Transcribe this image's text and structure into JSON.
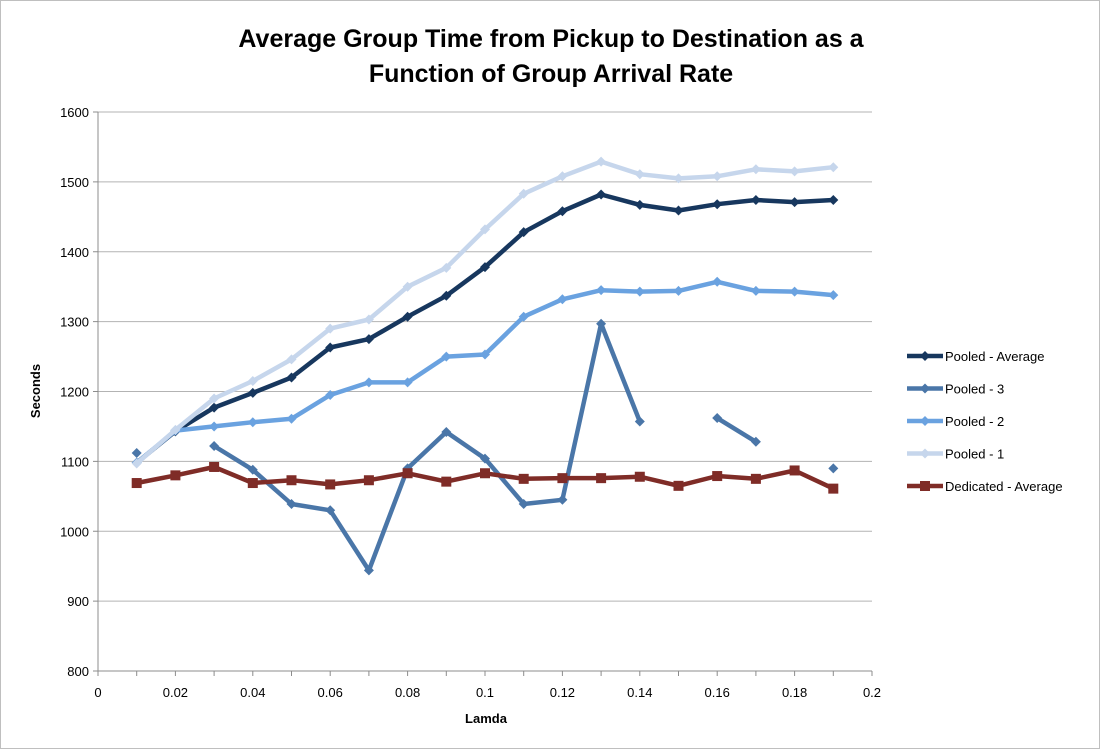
{
  "chart_data": {
    "type": "line",
    "title_lines": [
      "Average Group Time from Pickup to Destination as a",
      "Function of Group Arrival Rate"
    ],
    "xlabel": "Lamda",
    "ylabel": "Seconds",
    "xlim": [
      0,
      0.2
    ],
    "ylim": [
      800,
      1600
    ],
    "x_ticks": [
      "0",
      "0.02",
      "0.04",
      "0.06",
      "0.08",
      "0.1",
      "0.12",
      "0.14",
      "0.16",
      "0.18",
      "0.2"
    ],
    "y_ticks": [
      "800",
      "900",
      "1000",
      "1100",
      "1200",
      "1300",
      "1400",
      "1500",
      "1600"
    ],
    "grid": "horizontal",
    "legend_position": "right",
    "x": [
      0.01,
      0.02,
      0.03,
      0.04,
      0.05,
      0.06,
      0.07,
      0.08,
      0.09,
      0.1,
      0.11,
      0.12,
      0.13,
      0.14,
      0.15,
      0.16,
      0.17,
      0.18,
      0.19
    ],
    "series": [
      {
        "name": "Pooled - Average",
        "color": "#17375e",
        "marker": "diamond",
        "values": [
          1098,
          1143,
          1177,
          1198,
          1220,
          1263,
          1275,
          1307,
          1337,
          1378,
          1428,
          1458,
          1482,
          1467,
          1459,
          1468,
          1474,
          1471,
          1474
        ]
      },
      {
        "name": "Pooled - 3",
        "color": "#4a76a8",
        "marker": "diamond",
        "values": [
          1112,
          null,
          1122,
          1088,
          1039,
          1030,
          944,
          1090,
          1142,
          1104,
          1039,
          1045,
          1297,
          1157,
          null,
          1162,
          1128,
          null,
          1090
        ]
      },
      {
        "name": "Pooled - 2",
        "color": "#6aa2e0",
        "marker": "diamond",
        "values": [
          1098,
          1144,
          1150,
          1156,
          1161,
          1195,
          1213,
          1213,
          1250,
          1253,
          1307,
          1332,
          1345,
          1343,
          1344,
          1357,
          1344,
          1343,
          1338
        ]
      },
      {
        "name": "Pooled - 1",
        "color": "#c6d6ec",
        "marker": "diamond",
        "values": [
          1097,
          1145,
          1190,
          1215,
          1246,
          1290,
          1303,
          1350,
          1377,
          1432,
          1483,
          1508,
          1529,
          1511,
          1505,
          1508,
          1518,
          1515,
          1521
        ]
      },
      {
        "name": "Dedicated - Average",
        "color": "#7f2c27",
        "marker": "square",
        "values": [
          1069,
          1080,
          1092,
          1069,
          1073,
          1067,
          1073,
          1083,
          1071,
          1083,
          1075,
          1076,
          1076,
          1078,
          1065,
          1079,
          1075,
          1087,
          1061
        ]
      }
    ]
  }
}
